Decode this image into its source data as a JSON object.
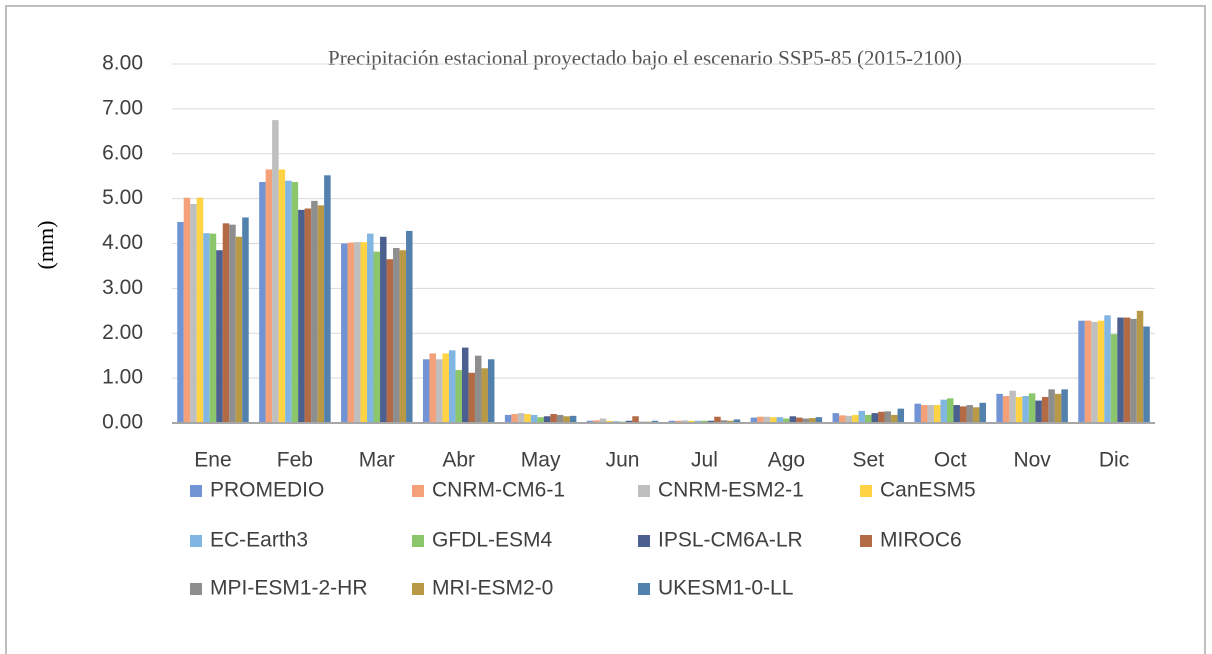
{
  "chart_data": {
    "type": "bar",
    "title": "Precipitación estacional proyectado  bajo el escenario SSP5-85 (2015-2100)",
    "ylabel": "(mm)",
    "categories": [
      "Ene",
      "Feb",
      "Mar",
      "Abr",
      "May",
      "Jun",
      "Jul",
      "Ago",
      "Set",
      "Oct",
      "Nov",
      "Dic"
    ],
    "series": [
      {
        "name": "PROMEDIO",
        "color": "#7294d4",
        "values": [
          4.48,
          5.37,
          4.0,
          1.42,
          0.18,
          0.05,
          0.05,
          0.12,
          0.22,
          0.43,
          0.65,
          2.28
        ]
      },
      {
        "name": "CNRM-CM6-1",
        "color": "#f4a078",
        "values": [
          5.02,
          5.65,
          4.02,
          1.55,
          0.2,
          0.06,
          0.05,
          0.14,
          0.17,
          0.4,
          0.6,
          2.28
        ]
      },
      {
        "name": "CNRM-ESM2-1",
        "color": "#bfbfbf",
        "values": [
          4.88,
          6.75,
          4.03,
          1.42,
          0.22,
          0.1,
          0.06,
          0.14,
          0.16,
          0.4,
          0.72,
          2.25
        ]
      },
      {
        "name": "CanESM5",
        "color": "#ffd343",
        "values": [
          5.02,
          5.65,
          4.03,
          1.55,
          0.2,
          0.05,
          0.05,
          0.13,
          0.18,
          0.4,
          0.58,
          2.28
        ]
      },
      {
        "name": "EC-Earth3",
        "color": "#82b6e2",
        "values": [
          4.23,
          5.4,
          4.22,
          1.62,
          0.18,
          0.04,
          0.05,
          0.13,
          0.27,
          0.52,
          0.6,
          2.4
        ]
      },
      {
        "name": "GFDL-ESM4",
        "color": "#8cc66a",
        "values": [
          4.22,
          5.37,
          3.82,
          1.18,
          0.13,
          0.03,
          0.05,
          0.1,
          0.18,
          0.55,
          0.66,
          1.98
        ]
      },
      {
        "name": "IPSL-CM6A-LR",
        "color": "#4c6090",
        "values": [
          3.85,
          4.75,
          4.15,
          1.68,
          0.15,
          0.05,
          0.05,
          0.15,
          0.22,
          0.4,
          0.5,
          2.35
        ]
      },
      {
        "name": "MIROC6",
        "color": "#b26b45",
        "values": [
          4.45,
          4.78,
          3.65,
          1.12,
          0.2,
          0.15,
          0.14,
          0.12,
          0.25,
          0.37,
          0.58,
          2.35
        ]
      },
      {
        "name": "MPI-ESM1-2-HR",
        "color": "#8e8e8e",
        "values": [
          4.42,
          4.95,
          3.9,
          1.5,
          0.18,
          0.03,
          0.06,
          0.1,
          0.26,
          0.4,
          0.75,
          2.32
        ]
      },
      {
        "name": "MRI-ESM2-0",
        "color": "#b89a46",
        "values": [
          4.15,
          4.85,
          3.85,
          1.22,
          0.15,
          0.03,
          0.05,
          0.11,
          0.18,
          0.35,
          0.65,
          2.5
        ]
      },
      {
        "name": "UKESM1-0-LL",
        "color": "#5281ae",
        "values": [
          4.58,
          5.52,
          4.28,
          1.42,
          0.16,
          0.05,
          0.08,
          0.13,
          0.32,
          0.45,
          0.75,
          2.15
        ]
      }
    ],
    "ylim": [
      0,
      8
    ],
    "yticks": [
      {
        "value": 0,
        "label": "0.00"
      },
      {
        "value": 1,
        "label": "1.00"
      },
      {
        "value": 2,
        "label": "2.00"
      },
      {
        "value": 3,
        "label": "3.00"
      },
      {
        "value": 4,
        "label": "4.00"
      },
      {
        "value": 5,
        "label": "5.00"
      },
      {
        "value": 6,
        "label": "6.00"
      },
      {
        "value": 7,
        "label": "7.00"
      },
      {
        "value": 8,
        "label": "8.00"
      }
    ],
    "grid": true
  }
}
